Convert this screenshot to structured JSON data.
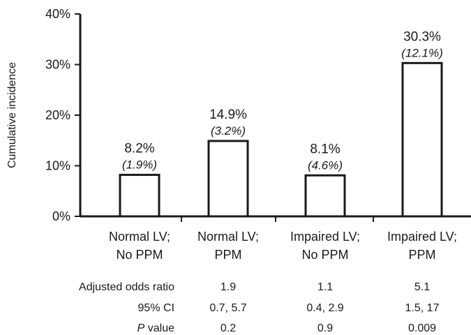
{
  "chart_data": {
    "type": "bar",
    "ylabel": "Cumulative incidence",
    "ylim": [
      0,
      40
    ],
    "yticks": [
      "0%",
      "10%",
      "20%",
      "30%",
      "40%"
    ],
    "grid": false,
    "categories": [
      [
        "Normal LV;",
        "No PPM"
      ],
      [
        "Normal LV;",
        "PPM"
      ],
      [
        "Impaired LV;",
        "No PPM"
      ],
      [
        "Impaired LV;",
        "PPM"
      ]
    ],
    "values": [
      8.2,
      14.9,
      8.1,
      30.3
    ],
    "value_labels": [
      "8.2%",
      "14.9%",
      "8.1%",
      "30.3%"
    ],
    "sub_labels": [
      "(1.9%)",
      "(3.2%)",
      "(4.6%)",
      "(12.1%)"
    ]
  },
  "stats_table": {
    "rows": [
      {
        "label": "Adjusted odds ratio",
        "label_italic": "",
        "values": [
          "",
          "1.9",
          "1.1",
          "5.1"
        ]
      },
      {
        "label": "95% CI",
        "label_italic": "",
        "values": [
          "",
          "0.7, 5.7",
          "0.4, 2.9",
          "1.5, 17"
        ]
      },
      {
        "label": " value",
        "label_italic": "P",
        "values": [
          "",
          "0.2",
          "0.9",
          "0.009"
        ]
      }
    ]
  },
  "colors": {
    "bar_fill": "#ffffff",
    "bar_stroke": "#1a1a1a",
    "axis": "#1a1a1a"
  }
}
